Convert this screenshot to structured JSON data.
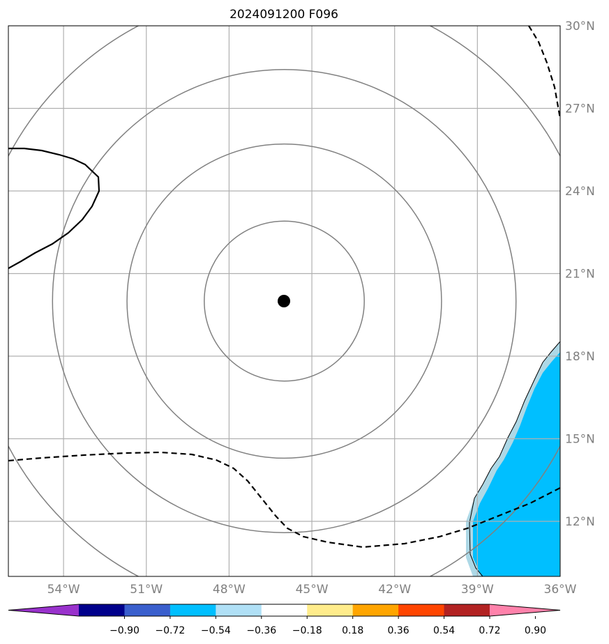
{
  "title": "2024091200 F096",
  "map": {
    "lon_range": [
      -56,
      -36
    ],
    "lat_range": [
      10,
      30
    ],
    "lat_ticks": [
      {
        "value": 30,
        "label": "30°N"
      },
      {
        "value": 27,
        "label": "27°N"
      },
      {
        "value": 24,
        "label": "24°N"
      },
      {
        "value": 21,
        "label": "21°N"
      },
      {
        "value": 18,
        "label": "18°N"
      },
      {
        "value": 15,
        "label": "15°N"
      },
      {
        "value": 12,
        "label": "12°N"
      }
    ],
    "lon_ticks": [
      {
        "value": -54,
        "label": "54°W"
      },
      {
        "value": -51,
        "label": "51°W"
      },
      {
        "value": -48,
        "label": "48°W"
      },
      {
        "value": -45,
        "label": "45°W"
      },
      {
        "value": -42,
        "label": "42°W"
      },
      {
        "value": -39,
        "label": "39°W"
      },
      {
        "value": -36,
        "label": "36°W"
      }
    ],
    "center": {
      "lon": -46.0,
      "lat": 20.0
    },
    "range_ring_radii_deg": [
      2.9,
      5.7,
      8.4,
      11.3
    ],
    "grid_color": "#b0b0b0",
    "ring_color": "#808080",
    "shade_color": "#00bfff",
    "shade_edge_color": "#add8e6"
  },
  "colorbar": {
    "colors": [
      "#9932cc",
      "#00008b",
      "#3a5fcd",
      "#00bfff",
      "#b0e0f6",
      "#ffffff",
      "#ffec8b",
      "#ffa500",
      "#ff4500",
      "#b22222",
      "#ff82ab"
    ],
    "tick_labels": [
      "−0.90",
      "−0.72",
      "−0.54",
      "−0.36",
      "−0.18",
      "0.18",
      "0.36",
      "0.54",
      "0.72",
      "0.90"
    ]
  }
}
